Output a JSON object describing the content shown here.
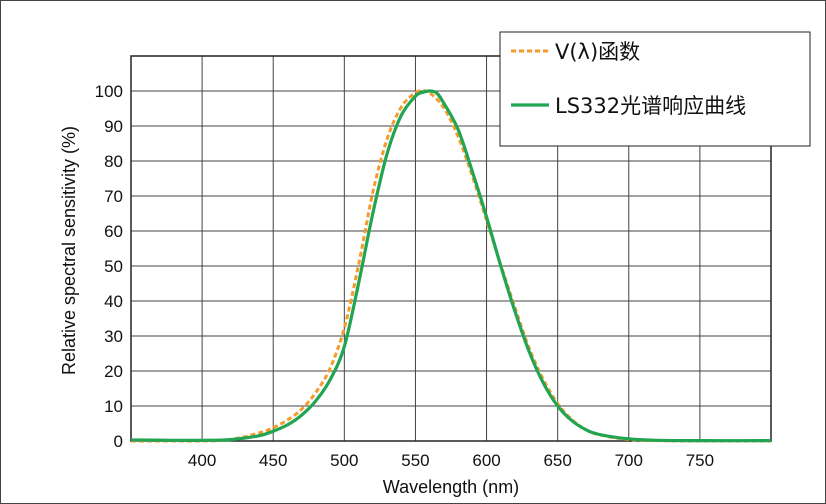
{
  "chart_data": {
    "type": "line",
    "xlabel": "Wavelength (nm)",
    "ylabel": "Relative spectral sensitivity (%)",
    "xlim": [
      350,
      800
    ],
    "ylim": [
      0,
      100
    ],
    "x_ticks": [
      400,
      450,
      500,
      550,
      600,
      650,
      700,
      750
    ],
    "y_ticks": [
      0,
      10,
      20,
      30,
      40,
      50,
      60,
      70,
      80,
      90,
      100
    ],
    "grid": true,
    "legend_position": "top-right",
    "series": [
      {
        "name": "V(λ)函数",
        "color": "#f59b2a",
        "style": "dashed",
        "x": [
          350,
          380,
          400,
          420,
          440,
          450,
          460,
          470,
          480,
          490,
          500,
          510,
          520,
          530,
          540,
          550,
          555,
          560,
          570,
          580,
          590,
          600,
          610,
          620,
          630,
          640,
          650,
          660,
          670,
          680,
          700,
          720,
          750,
          800
        ],
        "y": [
          0,
          0,
          0,
          0.4,
          2.3,
          3.8,
          6.0,
          9.1,
          13.9,
          20.8,
          32.3,
          50.3,
          71.0,
          86.2,
          95.4,
          99.5,
          100,
          99.5,
          95.2,
          87.0,
          75.7,
          63.1,
          50.3,
          38.1,
          26.5,
          17.5,
          10.7,
          6.1,
          3.2,
          1.7,
          0.4,
          0.1,
          0,
          0
        ]
      },
      {
        "name": "LS332光谱响应曲线",
        "color": "#22a552",
        "style": "solid",
        "x": [
          350,
          380,
          400,
          420,
          440,
          450,
          460,
          470,
          480,
          490,
          500,
          510,
          520,
          530,
          540,
          550,
          555,
          560,
          565,
          570,
          580,
          590,
          600,
          610,
          620,
          630,
          640,
          650,
          660,
          670,
          680,
          700,
          720,
          750,
          800
        ],
        "y": [
          0.3,
          0.2,
          0.2,
          0.4,
          1.5,
          2.8,
          4.6,
          7.4,
          11.5,
          17.5,
          27.0,
          45.0,
          65.0,
          82.0,
          93.0,
          98.5,
          99.6,
          100,
          99.4,
          96.5,
          89.0,
          77.0,
          64.0,
          50.0,
          37.0,
          25.5,
          16.5,
          10.0,
          5.8,
          3.2,
          1.8,
          0.6,
          0.2,
          0.1,
          0.1
        ]
      }
    ]
  }
}
